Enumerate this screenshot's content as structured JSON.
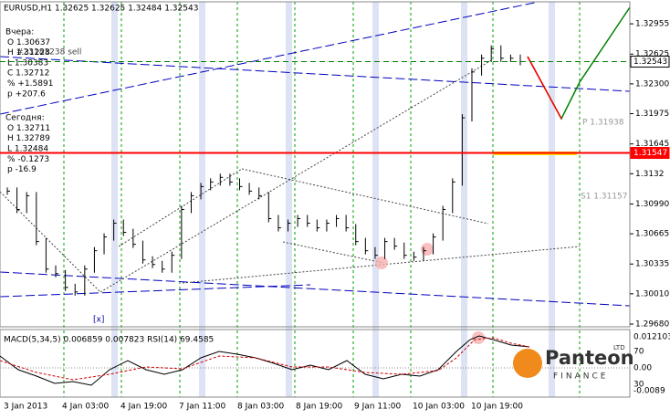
{
  "chart_data": {
    "type": "bar_chart",
    "title": "EURUSD,H1  1.32625 1.32625 1.32484 1.32543",
    "info_left": [
      "Вчера:",
      "O 1.30637",
      "H 1.31228",
      "L 1.30383",
      "C 1.32712",
      "% +1.5891",
      "p +207.6",
      "Сегодня:",
      "O 1.32711",
      "H 1.32789",
      "L 1.32484",
      "% -0.1273",
      "p -16.9"
    ],
    "order_label": "#23183238 sell",
    "pivot_labels": [
      "P 1.31938",
      "S1 1.31157"
    ],
    "marker_label": "[x]",
    "close": [
      1.3113,
      1.3093,
      1.3108,
      1.3058,
      1.3028,
      1.3023,
      1.3008,
      1.3003,
      1.3028,
      1.3048,
      1.3063,
      1.3078,
      1.3068,
      1.3055,
      1.3038,
      1.3033,
      1.3028,
      1.3043,
      1.3093,
      1.3108,
      1.3118,
      1.3123,
      1.3128,
      1.3123,
      1.3118,
      1.3113,
      1.3108,
      1.3083,
      1.3073,
      1.3078,
      1.3083,
      1.3078,
      1.3073,
      1.3078,
      1.3083,
      1.3073,
      1.3058,
      1.3048,
      1.3043,
      1.3058,
      1.3053,
      1.3043,
      1.3041,
      1.3048,
      1.3063,
      1.3093,
      1.3123,
      1.3193,
      1.3243,
      1.3258,
      1.3268,
      1.3258,
      1.3258,
      1.32543
    ],
    "ylim": [
      1.2968,
      1.33195
    ],
    "yticks": [
      1.32955,
      1.32625,
      {
        "value": 1.323,
        "label": "1.32300"
      },
      1.31975,
      1.31645,
      1.3132,
      {
        "value": 1.3099,
        "label": "1.30990"
      },
      1.30665,
      1.30335,
      {
        "value": 1.3001,
        "label": "1.30010"
      },
      {
        "value": 1.2968,
        "label": "1.29680"
      }
    ],
    "price_levels": [
      {
        "value": 1.32543,
        "color": "#008000"
      },
      {
        "value": 1.31547,
        "color": "#ff0000"
      }
    ],
    "xlabels": [
      "3 Jan 2013",
      "4 Jan 03:00",
      "4 Jan 19:00",
      "7 Jan 11:00",
      "8 Jan 03:00",
      "8 Jan 19:00",
      "9 Jan 11:00",
      "10 Jan 03:00",
      "10 Jan 19:00"
    ],
    "indicator_title": "MACD(5,34,5) 0.006859 0.007823 RSI(14) 69.4585",
    "indicator_ticks": [
      "0.012103",
      "70",
      "0.00",
      "30",
      "-0.0089"
    ],
    "logo": {
      "name": "Panteon",
      "sub": "FINANCE",
      "tag": "LTD"
    }
  }
}
